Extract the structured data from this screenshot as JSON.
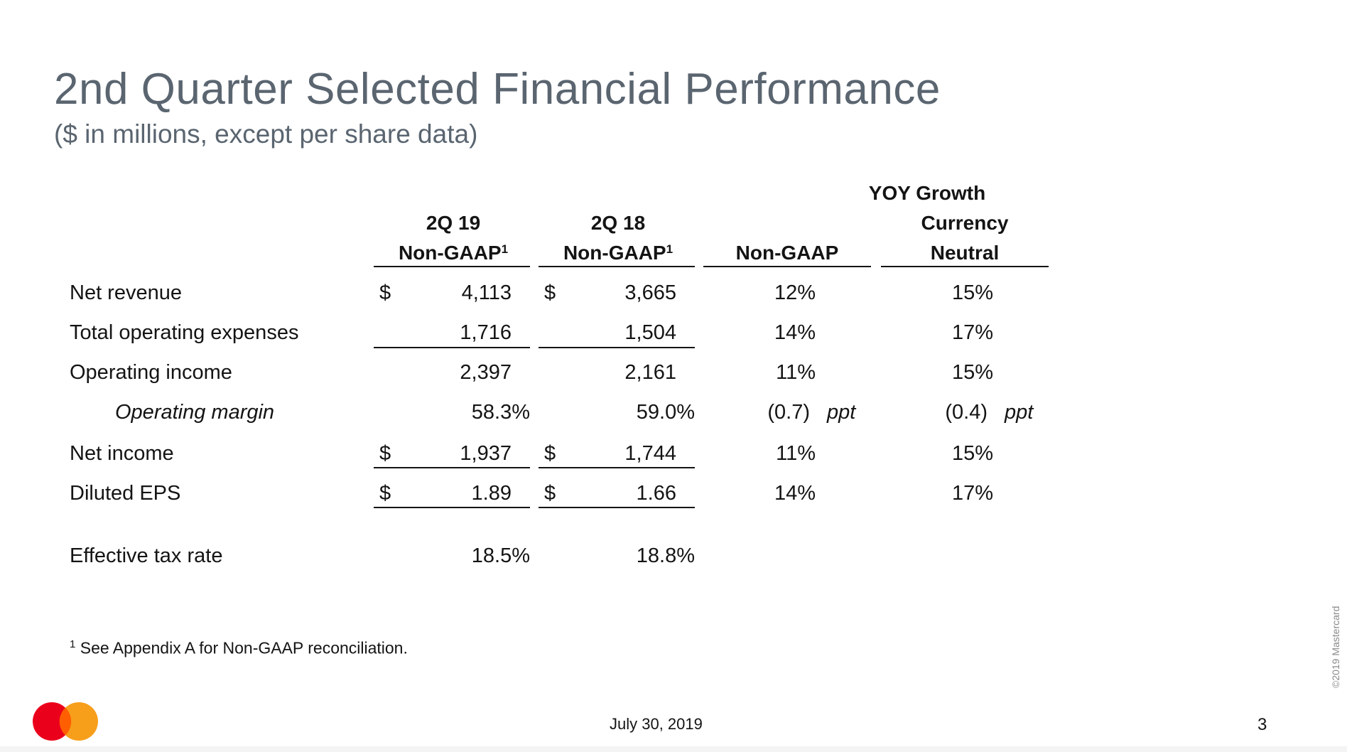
{
  "slide": {
    "title": "2nd Quarter Selected Financial Performance",
    "subtitle": "($ in millions, except per share data)",
    "footnote_mark": "1",
    "footnote_text": "See Appendix A for Non-GAAP reconciliation.",
    "date": "July 30, 2019",
    "page_number": "3",
    "copyright": "©2019 Mastercard"
  },
  "table": {
    "group_header": "YOY Growth",
    "columns": {
      "c1_line1": "2Q 19",
      "c1_line2": "Non-GAAP",
      "c1_sup": "1",
      "c2_line1": "2Q 18",
      "c2_line2": "Non-GAAP",
      "c2_sup": "1",
      "c3_line2": "Non-GAAP",
      "c4_line1": "Currency",
      "c4_line2": "Neutral"
    },
    "rows": {
      "net_revenue": {
        "label": "Net revenue",
        "cur1": "$",
        "v1": "4,113",
        "cur2": "$",
        "v2": "3,665",
        "g1": "12%",
        "g2": "15%"
      },
      "opex": {
        "label": "Total operating expenses",
        "v1": "1,716",
        "v2": "1,504",
        "g1": "14%",
        "g2": "17%"
      },
      "op_income": {
        "label": "Operating income",
        "v1": "2,397",
        "v2": "2,161",
        "g1": "11%",
        "g2": "15%"
      },
      "op_margin": {
        "label": "Operating margin",
        "v1": "58.3%",
        "v2": "59.0%",
        "g1": "(0.7)",
        "g1_unit": "ppt",
        "g2": "(0.4)",
        "g2_unit": "ppt"
      },
      "net_income": {
        "label": "Net income",
        "cur1": "$",
        "v1": "1,937",
        "cur2": "$",
        "v2": "1,744",
        "g1": "11%",
        "g2": "15%"
      },
      "eps": {
        "label": "Diluted EPS",
        "cur1": "$",
        "v1": "1.89",
        "cur2": "$",
        "v2": "1.66",
        "g1": "14%",
        "g2": "17%"
      },
      "tax_rate": {
        "label": "Effective tax rate",
        "v1": "18.5%",
        "v2": "18.8%"
      }
    }
  },
  "colors": {
    "title": "#5a6570",
    "logo_red": "#eb001b",
    "logo_orange": "#f79e1b",
    "logo_overlap": "#ff5f00"
  }
}
